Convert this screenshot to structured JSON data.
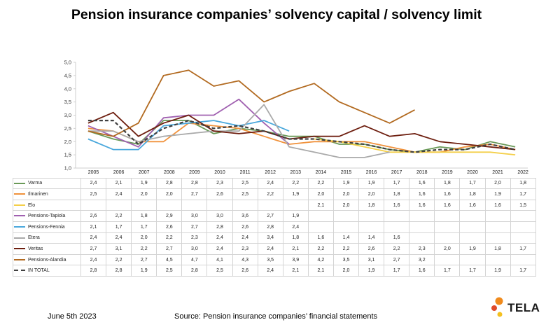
{
  "chart_data": {
    "type": "line",
    "title": "Pension insurance companies’ solvency capital / solvency limit",
    "x": [
      "2005",
      "2006",
      "2007",
      "2008",
      "2009",
      "2010",
      "2011",
      "2012",
      "2013",
      "2014",
      "2015",
      "2016",
      "2017",
      "2018",
      "2019",
      "2020",
      "2021",
      "2022"
    ],
    "yticks": [
      "1,0",
      "1,5",
      "2,0",
      "2,5",
      "3,0",
      "3,5",
      "4,0",
      "4,5",
      "5,0"
    ],
    "ylim": [
      1.0,
      5.0
    ],
    "grid": false,
    "legend": "table below chart",
    "series": [
      {
        "name": "Varma",
        "color": "#6a9a58",
        "dash": false,
        "values": [
          2.4,
          2.1,
          1.9,
          2.8,
          2.8,
          2.3,
          2.5,
          2.4,
          2.2,
          2.2,
          1.9,
          1.9,
          1.7,
          1.6,
          1.8,
          1.7,
          2.0,
          1.8
        ],
        "labels": [
          "2,4",
          "2,1",
          "1,9",
          "2,8",
          "2,8",
          "2,3",
          "2,5",
          "2,4",
          "2,2",
          "2,2",
          "1,9",
          "1,9",
          "1,7",
          "1,6",
          "1,8",
          "1,7",
          "2,0",
          "1,8"
        ]
      },
      {
        "name": "Ilmarinen",
        "color": "#f0923c",
        "dash": false,
        "values": [
          2.5,
          2.4,
          2.0,
          2.0,
          2.7,
          2.6,
          2.5,
          2.2,
          1.9,
          2.0,
          2.0,
          2.0,
          1.8,
          1.6,
          1.6,
          1.8,
          1.9,
          1.7
        ],
        "labels": [
          "2,5",
          "2,4",
          "2,0",
          "2,0",
          "2,7",
          "2,6",
          "2,5",
          "2,2",
          "1,9",
          "2,0",
          "2,0",
          "2,0",
          "1,8",
          "1,6",
          "1,6",
          "1,8",
          "1,9",
          "1,7"
        ]
      },
      {
        "name": "Elo",
        "color": "#f4cf48",
        "dash": false,
        "values": [
          null,
          null,
          null,
          null,
          null,
          null,
          null,
          null,
          null,
          2.1,
          2.0,
          1.8,
          1.6,
          1.6,
          1.6,
          1.6,
          1.6,
          1.5
        ],
        "labels": [
          "",
          "",
          "",
          "",
          "",
          "",
          "",
          "",
          "",
          "2,1",
          "2,0",
          "1,8",
          "1,6",
          "1,6",
          "1,6",
          "1,6",
          "1,6",
          "1,5"
        ]
      },
      {
        "name": "Pensions-Tapiola",
        "color": "#a060b0",
        "dash": false,
        "values": [
          2.6,
          2.2,
          1.8,
          2.9,
          3.0,
          3.0,
          3.6,
          2.7,
          1.9,
          null,
          null,
          null,
          null,
          null,
          null,
          null,
          null,
          null
        ],
        "labels": [
          "2,6",
          "2,2",
          "1,8",
          "2,9",
          "3,0",
          "3,0",
          "3,6",
          "2,7",
          "1,9",
          "",
          "",
          "",
          "",
          "",
          "",
          "",
          "",
          ""
        ]
      },
      {
        "name": "Pensions-Fennia",
        "color": "#4aa8dc",
        "dash": false,
        "values": [
          2.1,
          1.7,
          1.7,
          2.6,
          2.7,
          2.8,
          2.6,
          2.8,
          2.4,
          null,
          null,
          null,
          null,
          null,
          null,
          null,
          null,
          null
        ],
        "labels": [
          "2,1",
          "1,7",
          "1,7",
          "2,6",
          "2,7",
          "2,8",
          "2,6",
          "2,8",
          "2,4",
          "",
          "",
          "",
          "",
          "",
          "",
          "",
          "",
          ""
        ]
      },
      {
        "name": "Etera",
        "color": "#aaaaaa",
        "dash": false,
        "values": [
          2.4,
          2.4,
          2.0,
          2.2,
          2.3,
          2.4,
          2.4,
          3.4,
          1.8,
          1.6,
          1.4,
          1.4,
          1.6,
          null,
          null,
          null,
          null,
          null
        ],
        "labels": [
          "2,4",
          "2,4",
          "2,0",
          "2,2",
          "2,3",
          "2,4",
          "2,4",
          "3,4",
          "1,8",
          "1,6",
          "1,4",
          "1,4",
          "1,6",
          "",
          "",
          "",
          "",
          ""
        ]
      },
      {
        "name": "Veritas",
        "color": "#6e1f10",
        "dash": false,
        "values": [
          2.7,
          3.1,
          2.2,
          2.7,
          3.0,
          2.4,
          2.3,
          2.4,
          2.1,
          2.2,
          2.2,
          2.6,
          2.2,
          2.3,
          2.0,
          1.9,
          1.8,
          1.7
        ],
        "labels": [
          "2,7",
          "3,1",
          "2,2",
          "2,7",
          "3,0",
          "2,4",
          "2,3",
          "2,4",
          "2,1",
          "2,2",
          "2,2",
          "2,6",
          "2,2",
          "2,3",
          "2,0",
          "1,9",
          "1,8",
          "1,7"
        ]
      },
      {
        "name": "Pensions-Alandia",
        "color": "#b26a20",
        "dash": false,
        "values": [
          2.4,
          2.2,
          2.7,
          4.5,
          4.7,
          4.1,
          4.3,
          3.5,
          3.9,
          4.2,
          3.5,
          3.1,
          2.7,
          3.2,
          null,
          null,
          null,
          null
        ],
        "labels": [
          "2,4",
          "2,2",
          "2,7",
          "4,5",
          "4,7",
          "4,1",
          "4,3",
          "3,5",
          "3,9",
          "4,2",
          "3,5",
          "3,1",
          "2,7",
          "3,2",
          "",
          "",
          "",
          ""
        ]
      },
      {
        "name": "IN TOTAL",
        "color": "#404040",
        "dash": true,
        "values": [
          2.8,
          2.8,
          1.9,
          2.5,
          2.8,
          2.5,
          2.6,
          2.4,
          2.1,
          2.1,
          2.0,
          1.9,
          1.7,
          1.6,
          1.7,
          1.7,
          1.9,
          1.7
        ],
        "labels": [
          "2,8",
          "2,8",
          "1,9",
          "2,5",
          "2,8",
          "2,5",
          "2,6",
          "2,4",
          "2,1",
          "2,1",
          "2,0",
          "1,9",
          "1,7",
          "1,6",
          "1,7",
          "1,7",
          "1,9",
          "1,7"
        ]
      }
    ]
  },
  "footer": {
    "date": "June 5th 2023",
    "source": "Source: Pension insurance companies’ financial statements"
  },
  "logo": {
    "text": "TELA",
    "colors": [
      "#f08a1c",
      "#f4c020",
      "#e04a2a"
    ]
  }
}
